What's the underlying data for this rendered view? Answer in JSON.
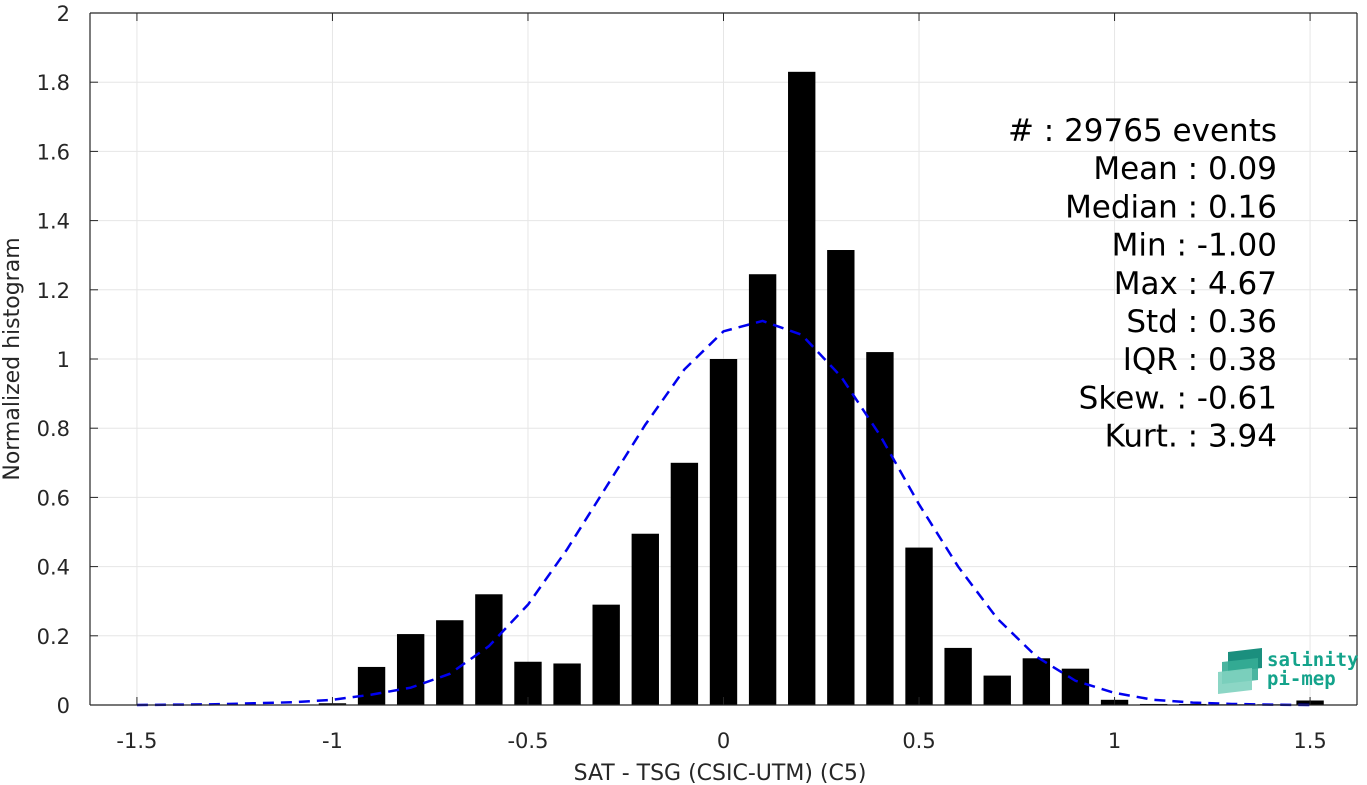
{
  "chart_data": {
    "type": "bar",
    "xlabel": "SAT - TSG (CSIC-UTM) (C5)",
    "ylabel": "Normalized histogram",
    "xlim": [
      -1.62,
      1.62
    ],
    "ylim": [
      0,
      2
    ],
    "grid": true,
    "x_ticks": [
      "-1.5",
      "-1",
      "-0.5",
      "0",
      "0.5",
      "1",
      "1.5"
    ],
    "y_ticks": [
      "0",
      "0.2",
      "0.4",
      "0.6",
      "0.8",
      "1",
      "1.2",
      "1.4",
      "1.6",
      "1.8",
      "2"
    ],
    "bar_width": 0.07,
    "x": [
      -1.5,
      -1.4,
      -1.3,
      -1.2,
      -1.1,
      -1.0,
      -0.9,
      -0.8,
      -0.7,
      -0.6,
      -0.5,
      -0.4,
      -0.3,
      -0.2,
      -0.1,
      0.0,
      0.1,
      0.2,
      0.3,
      0.4,
      0.5,
      0.6,
      0.7,
      0.8,
      0.9,
      1.0,
      1.1,
      1.2,
      1.3,
      1.4,
      1.5
    ],
    "values": [
      0,
      0,
      0,
      0,
      0,
      0.005,
      0.11,
      0.205,
      0.245,
      0.32,
      0.125,
      0.12,
      0.29,
      0.495,
      0.7,
      1.0,
      1.245,
      1.83,
      1.315,
      1.02,
      0.455,
      0.165,
      0.085,
      0.135,
      0.105,
      0.015,
      0.003,
      0.003,
      0.002,
      0.002,
      0.013
    ],
    "fit_curve": {
      "style": "dashed",
      "color": "#0000ee",
      "mean": 0.09,
      "std": 0.36,
      "x": [
        -1.5,
        -1.4,
        -1.3,
        -1.2,
        -1.1,
        -1.0,
        -0.9,
        -0.8,
        -0.7,
        -0.6,
        -0.5,
        -0.4,
        -0.3,
        -0.2,
        -0.1,
        0.0,
        0.1,
        0.2,
        0.3,
        0.4,
        0.5,
        0.6,
        0.7,
        0.8,
        0.9,
        1.0,
        1.1,
        1.2,
        1.3,
        1.4,
        1.5
      ],
      "y": [
        0.0,
        0.001,
        0.002,
        0.005,
        0.008,
        0.015,
        0.03,
        0.05,
        0.09,
        0.17,
        0.29,
        0.45,
        0.63,
        0.81,
        0.97,
        1.08,
        1.11,
        1.07,
        0.95,
        0.78,
        0.58,
        0.4,
        0.25,
        0.14,
        0.07,
        0.035,
        0.015,
        0.007,
        0.003,
        0.001,
        0.0
      ]
    },
    "stats": [
      "#  : 29765 events",
      "Mean : 0.09",
      "Median : 0.16",
      "Min : -1.00",
      "Max : 4.67",
      "Std : 0.36",
      "IQR : 0.38",
      "Skew. : -0.61",
      "Kurt. : 3.94"
    ],
    "colors": {
      "bars": "#000000",
      "fit": "#0000ee",
      "grid": "#e6e6e6",
      "axis": "#262626"
    }
  },
  "logo": {
    "line1": "salinity",
    "line2": "pi-mep",
    "icon": "wave-layers-icon"
  }
}
